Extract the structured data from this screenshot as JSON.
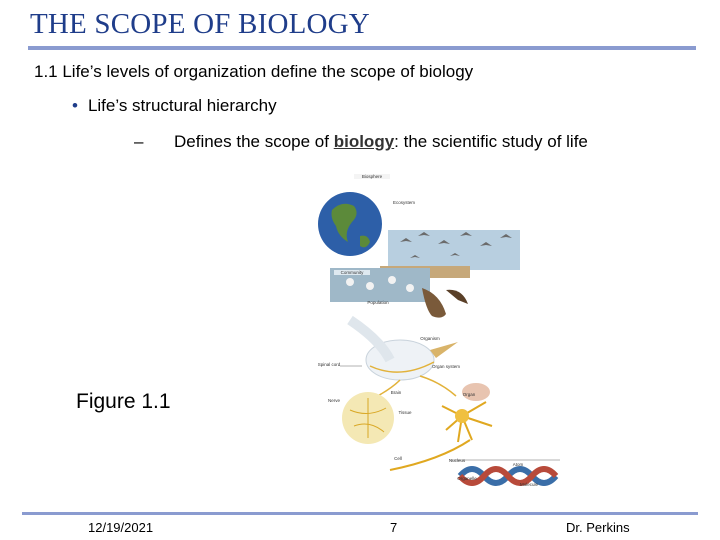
{
  "slide": {
    "title": "THE SCOPE OF BIOLOGY",
    "heading": "1.1 Life’s levels of organization define the scope of biology",
    "bullet": "Life’s structural hierarchy",
    "bullet_marker": "•",
    "sub_marker": "–",
    "sub_prefix": "Defines the scope of ",
    "sub_term": "biology",
    "sub_suffix": ": the scientific study of life",
    "figure_label": "Figure 1.1"
  },
  "figure": {
    "labels": {
      "biosphere": "Biosphere",
      "ecosystem": "Ecosystem",
      "community": "Community",
      "population": "Population",
      "organism": "Organism",
      "organ_system": "Organ system",
      "organ": "Organ",
      "tissue": "Tissue",
      "cell": "Cell",
      "nucleus": "Nucleus",
      "atom": "Atom",
      "organelle": "Organelle",
      "molecule": "Molecule",
      "spinal_cord": "Spinal cord",
      "brain": "Brain",
      "nerve": "Nerve"
    }
  },
  "footer": {
    "date": "12/19/2021",
    "page": "7",
    "author": "Dr. Perkins"
  }
}
